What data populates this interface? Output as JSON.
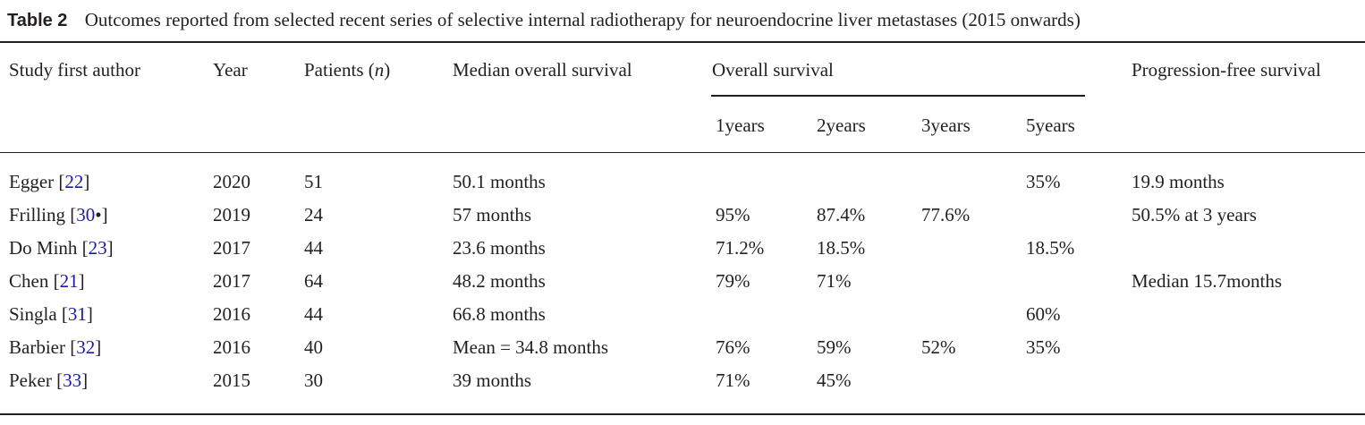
{
  "caption": {
    "label": "Table 2",
    "text": "Outcomes reported from selected recent series of selective internal radiotherapy for neuroendocrine liver metastases (2015 onwards)"
  },
  "header": {
    "author": "Study first author",
    "year": "Year",
    "patients": {
      "before": "Patients (",
      "var": "n",
      "after": ")"
    },
    "median": "Median overall survival",
    "overall": "Overall survival",
    "overall_sub": [
      "1years",
      "2years",
      "3years",
      "5years"
    ],
    "pfs": "Progression-free survival"
  },
  "rows": [
    {
      "author": {
        "before": "Egger [",
        "ref": "22",
        "after": "]"
      },
      "year": 2020,
      "patients": 51,
      "median": "50.1 months",
      "os": [
        null,
        null,
        null,
        "35%"
      ],
      "pfs": "19.9 months"
    },
    {
      "author": {
        "before": "Frilling [",
        "ref": "30",
        "after": "•]"
      },
      "year": 2019,
      "patients": 24,
      "median": "57 months",
      "os": [
        "95%",
        "87.4%",
        "77.6%",
        null
      ],
      "pfs": "50.5% at 3 years"
    },
    {
      "author": {
        "before": "Do Minh [",
        "ref": "23",
        "after": "]"
      },
      "year": 2017,
      "patients": 44,
      "median": "23.6 months",
      "os": [
        "71.2%",
        "18.5%",
        null,
        "18.5%"
      ],
      "pfs": null
    },
    {
      "author": {
        "before": "Chen [",
        "ref": "21",
        "after": "]"
      },
      "year": 2017,
      "patients": 64,
      "median": "48.2 months",
      "os": [
        "79%",
        "71%",
        null,
        null
      ],
      "pfs": "Median 15.7months"
    },
    {
      "author": {
        "before": "Singla [",
        "ref": "31",
        "after": "]"
      },
      "year": 2016,
      "patients": 44,
      "median": "66.8 months",
      "os": [
        null,
        null,
        null,
        "60%"
      ],
      "pfs": null
    },
    {
      "author": {
        "before": "Barbier [",
        "ref": "32",
        "after": "]"
      },
      "year": 2016,
      "patients": 40,
      "median": "Mean = 34.8 months",
      "os": [
        "76%",
        "59%",
        "52%",
        "35%"
      ],
      "pfs": null
    },
    {
      "author": {
        "before": "Peker [",
        "ref": "33",
        "after": "]"
      },
      "year": 2015,
      "patients": 30,
      "median": "39 months",
      "os": [
        "71%",
        "45%",
        null,
        null
      ],
      "pfs": null
    }
  ]
}
